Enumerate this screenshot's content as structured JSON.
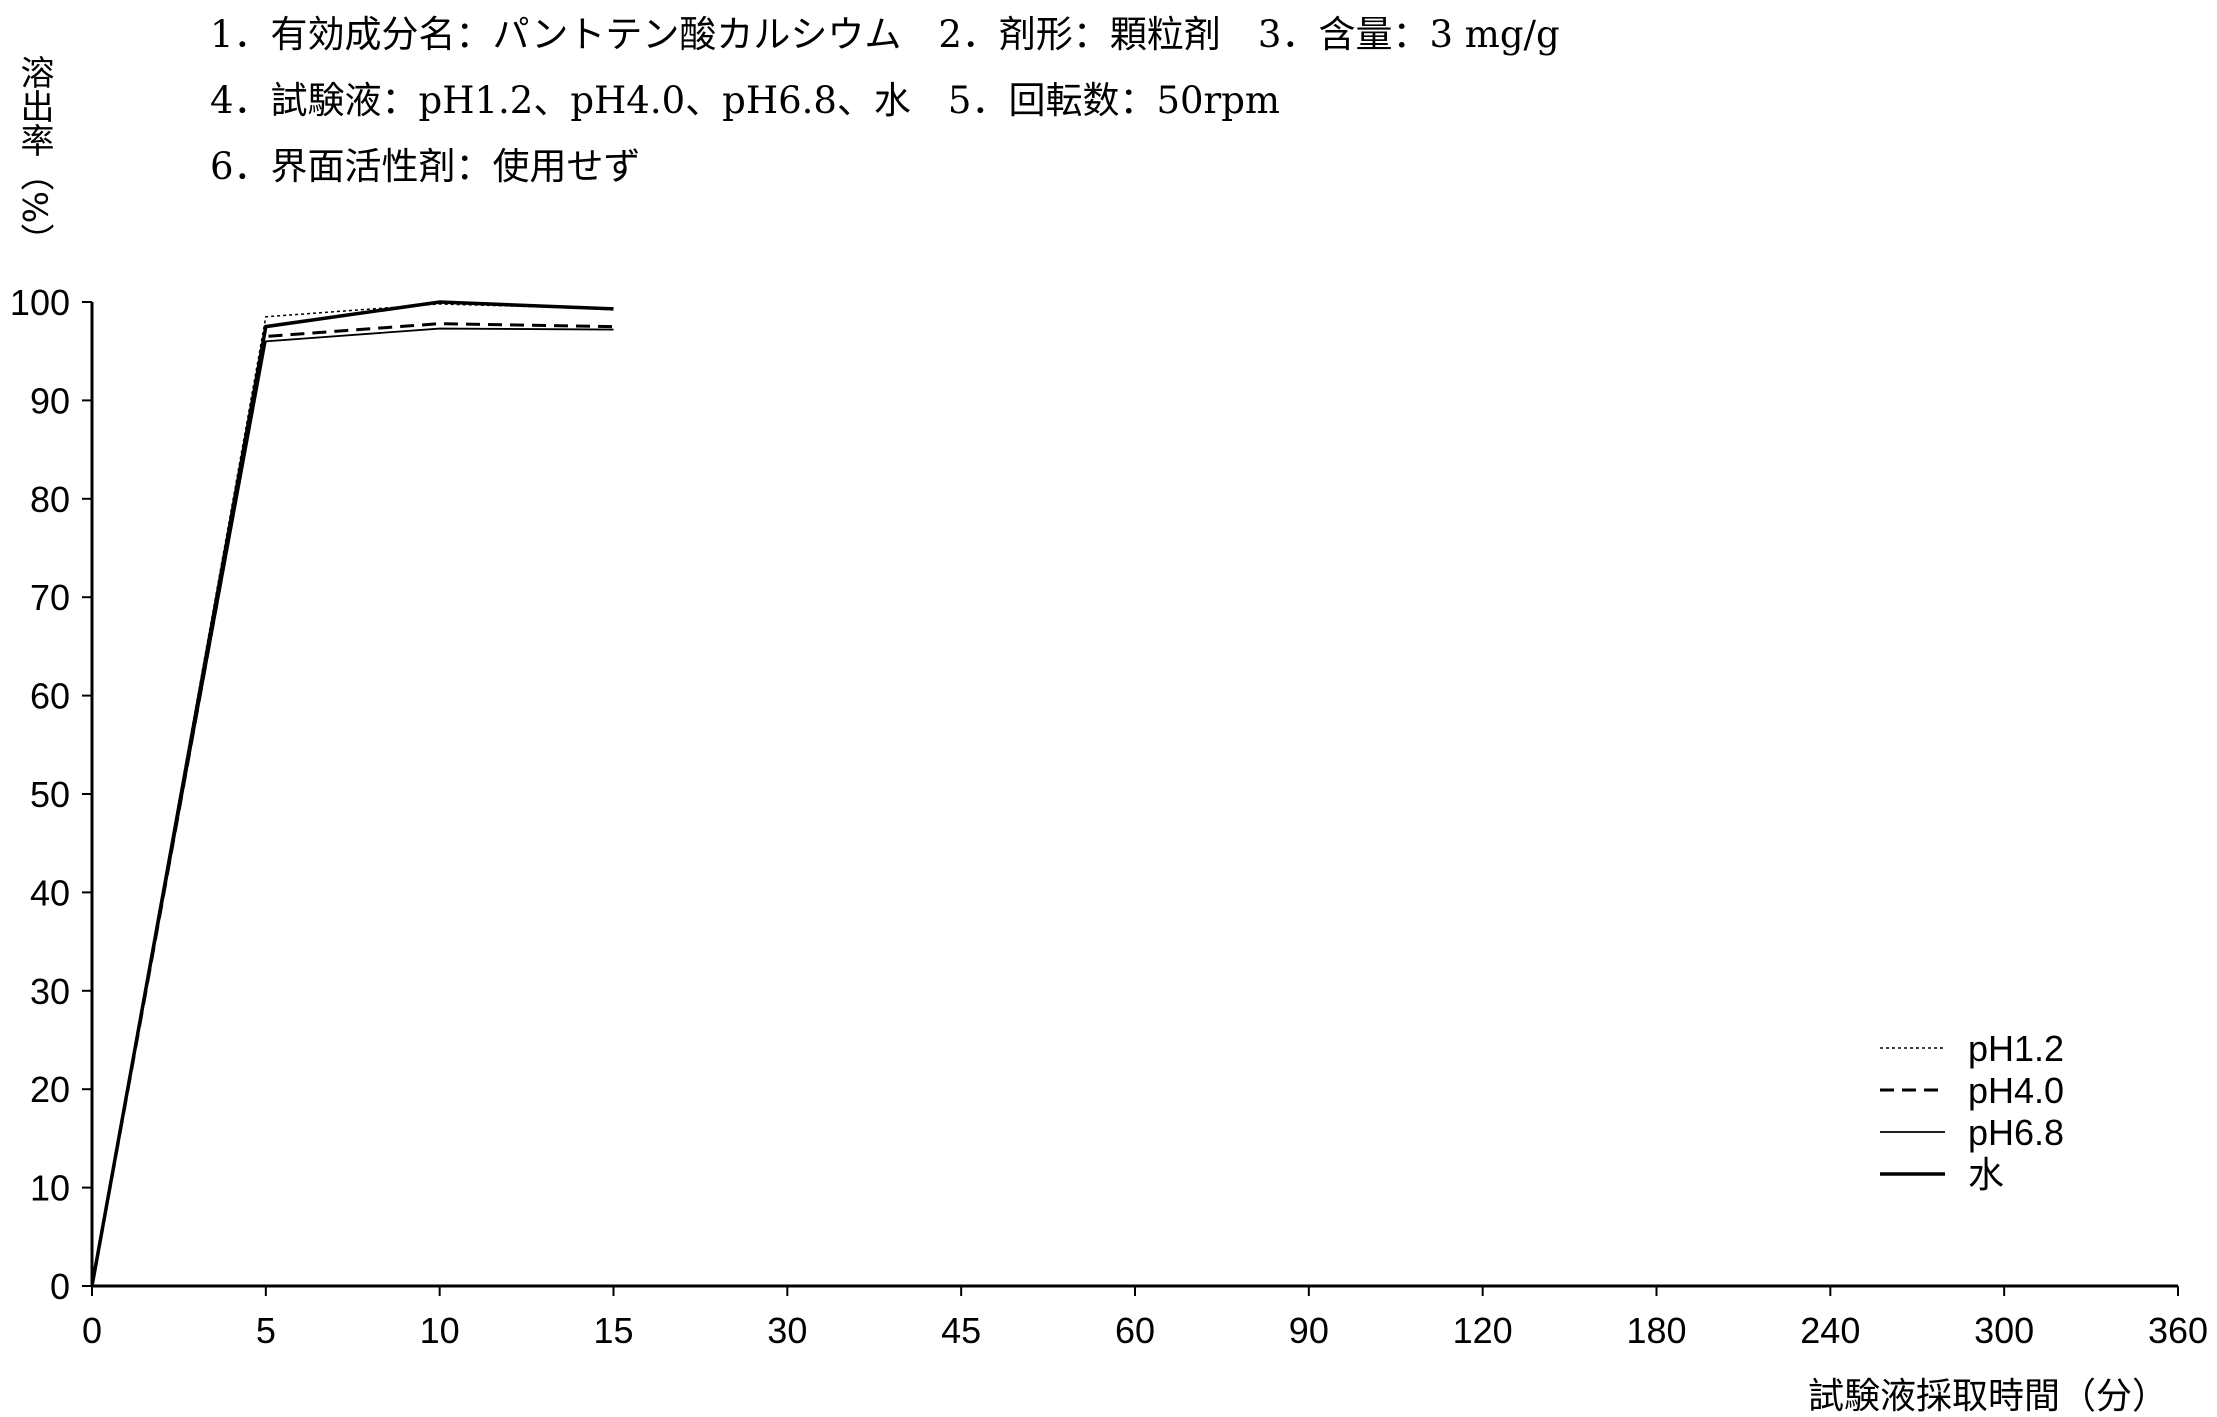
{
  "header": {
    "line1": "1．有効成分名：パントテン酸カルシウム　2．剤形：顆粒剤　3．含量：3 mg/g",
    "line2": "4．試験液：pH1.2、pH4.0、pH6.8、水　5．回転数：50rpm",
    "line3": "6．界面活性剤：使用せず"
  },
  "chart_data": {
    "type": "line",
    "title": "",
    "xlabel": "試験液採取時間（分）",
    "ylabel": "溶出率（%）",
    "x_ticks": [
      "0",
      "5",
      "10",
      "15",
      "30",
      "45",
      "60",
      "90",
      "120",
      "180",
      "240",
      "300",
      "360"
    ],
    "y_ticks": [
      "0",
      "10",
      "20",
      "30",
      "40",
      "50",
      "60",
      "70",
      "80",
      "90",
      "100"
    ],
    "ylim": [
      0,
      100
    ],
    "grid": false,
    "legend_position": "bottom-right",
    "x": [
      0,
      5,
      10,
      15
    ],
    "series": [
      {
        "name": "pH1.2",
        "style": "dotted",
        "values": [
          0,
          98.5,
          99.8,
          99.3
        ]
      },
      {
        "name": "pH4.0",
        "style": "dashed",
        "values": [
          0,
          96.5,
          97.8,
          97.5
        ]
      },
      {
        "name": "pH6.8",
        "style": "thin-solid",
        "values": [
          0,
          96.0,
          97.3,
          97.2
        ]
      },
      {
        "name": "水",
        "style": "thick-solid",
        "values": [
          0,
          97.5,
          100.0,
          99.3
        ]
      }
    ]
  }
}
